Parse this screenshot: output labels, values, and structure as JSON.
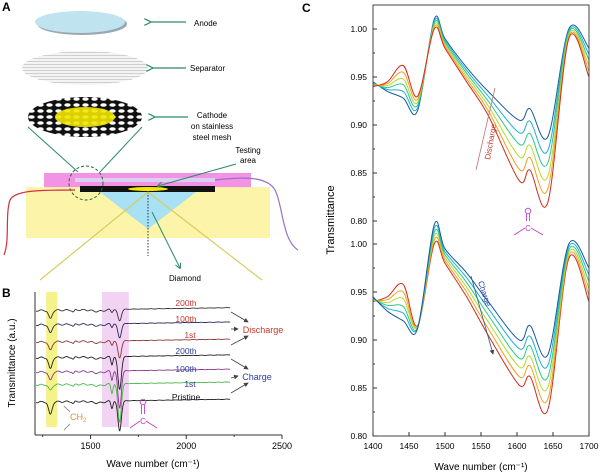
{
  "panels": {
    "a": {
      "letter": "A",
      "anode": "Anode",
      "separator": "Separator",
      "cathode": [
        "Cathode",
        "on stainless",
        "steel mesh"
      ],
      "testing_area": [
        "Testing",
        "area"
      ],
      "diamond": "Diamond"
    },
    "b": {
      "letter": "B",
      "discharge_label": "Discharge",
      "charge_label": "Charge",
      "ch2_label": "CH",
      "ch2_sub": "2",
      "carbonyl_o": "O",
      "carbonyl_c": "C",
      "colors": {
        "discharge": "#c0392b",
        "charge": "#2c3e9a",
        "ch2": "#e0903a",
        "carbonyl": "#c040c8",
        "band_ch2": "#f6f28a",
        "band_co": "#f0c8f0"
      }
    },
    "c": {
      "letter": "C",
      "discharge_label": "Discharge",
      "charge_label": "Charge",
      "carbonyl_o": "O",
      "carbonyl_c": "C"
    }
  },
  "chart_data": [
    {
      "panel": "B",
      "type": "line",
      "xlabel": "Wave number (cm⁻¹)",
      "ylabel": "Transmittance (a.u.)",
      "xlim": [
        1210,
        2500
      ],
      "xticks": [
        1500,
        2000,
        2500
      ],
      "ylim": [
        0,
        10
      ],
      "grid": false,
      "bands_cm-1": {
        "CH2": [
          1268,
          1325
        ],
        "C=O": [
          1560,
          1700
        ]
      },
      "series": [
        {
          "name": "200th",
          "group": "Discharge",
          "label_color": "#c0392b",
          "line_color": "#333333",
          "offset": 8.7,
          "dip_1290": 0.6,
          "dip_1650": 0.8
        },
        {
          "name": "100th",
          "group": "Discharge",
          "label_color": "#c0392b",
          "line_color": "#2a2a5a",
          "offset": 7.7,
          "dip_1290": 0.6,
          "dip_1650": 1.0
        },
        {
          "name": "1st",
          "group": "Discharge",
          "label_color": "#c0392b",
          "line_color": "#8a3a3a",
          "offset": 6.5,
          "dip_1290": 0.6,
          "dip_1650": 1.2
        },
        {
          "name": "200th",
          "group": "Charge",
          "label_color": "#2c3e9a",
          "line_color": "#222222",
          "offset": 5.4,
          "dip_1290": 0.8,
          "dip_1650": 2.3
        },
        {
          "name": "100th",
          "group": "Charge",
          "label_color": "#2c3e9a",
          "line_color": "#8a3a8a",
          "offset": 4.4,
          "dip_1290": 0.6,
          "dip_1650": 2.6
        },
        {
          "name": "1st",
          "group": "Charge",
          "label_color": "#2c3e9a",
          "line_color": "#4ab84a",
          "offset": 3.5,
          "dip_1290": 0.4,
          "dip_1650": 2.7
        },
        {
          "name": "Pristine",
          "group": "",
          "label_color": "#111111",
          "line_color": "#222222",
          "offset": 2.3,
          "dip_1290": 0.9,
          "dip_1650": 2.1
        }
      ]
    },
    {
      "panel": "C-top",
      "type": "line",
      "ylabel": "Transmittance",
      "xlim": [
        1400,
        1700
      ],
      "ylim": [
        0.8,
        1.02
      ],
      "yticks": [
        "0.80",
        "0.85",
        "0.90",
        "0.95",
        "1.00"
      ],
      "x": [
        1400,
        1420,
        1442,
        1462,
        1485,
        1500,
        1530,
        1560,
        1603,
        1618,
        1643,
        1672,
        1700
      ],
      "series": [
        {
          "color": "#1a5a9a",
          "values": [
            0.945,
            0.935,
            0.928,
            0.915,
            1.01,
            0.99,
            0.96,
            0.935,
            0.905,
            0.917,
            0.888,
            1.0,
            0.98
          ]
        },
        {
          "color": "#1bb0d8",
          "values": [
            0.944,
            0.937,
            0.935,
            0.918,
            1.008,
            0.988,
            0.957,
            0.93,
            0.892,
            0.904,
            0.874,
            0.998,
            0.974
          ]
        },
        {
          "color": "#2cc98a",
          "values": [
            0.943,
            0.939,
            0.942,
            0.921,
            1.006,
            0.986,
            0.954,
            0.925,
            0.88,
            0.891,
            0.861,
            0.996,
            0.968
          ]
        },
        {
          "color": "#b8d82a",
          "values": [
            0.942,
            0.941,
            0.948,
            0.924,
            1.004,
            0.984,
            0.951,
            0.92,
            0.867,
            0.879,
            0.847,
            0.994,
            0.962
          ]
        },
        {
          "color": "#f0a020",
          "values": [
            0.941,
            0.943,
            0.955,
            0.927,
            1.002,
            0.982,
            0.948,
            0.915,
            0.854,
            0.866,
            0.834,
            0.992,
            0.956
          ]
        },
        {
          "color": "#d62a1a",
          "values": [
            0.94,
            0.945,
            0.962,
            0.93,
            1.0,
            0.98,
            0.945,
            0.91,
            0.842,
            0.853,
            0.82,
            0.99,
            0.95
          ]
        }
      ]
    },
    {
      "panel": "C-bottom",
      "type": "line",
      "xlabel": "Wave number (cm⁻¹)",
      "xlim": [
        1400,
        1700
      ],
      "xticks": [
        "1400",
        "1450",
        "1500",
        "1550",
        "1600",
        "1650",
        "1700"
      ],
      "ylim": [
        0.8,
        1.02
      ],
      "yticks": [
        "0.80",
        "0.85",
        "0.90",
        "0.95",
        "1.00"
      ],
      "x": [
        1400,
        1420,
        1442,
        1462,
        1485,
        1500,
        1530,
        1560,
        1603,
        1618,
        1643,
        1672,
        1700
      ],
      "series": [
        {
          "color": "#d62a1a",
          "values": [
            0.94,
            0.945,
            0.958,
            0.915,
            1.0,
            0.98,
            0.945,
            0.905,
            0.853,
            0.862,
            0.828,
            0.985,
            0.94
          ]
        },
        {
          "color": "#f0a020",
          "values": [
            0.941,
            0.942,
            0.95,
            0.914,
            1.004,
            0.983,
            0.95,
            0.912,
            0.862,
            0.873,
            0.839,
            0.988,
            0.947
          ]
        },
        {
          "color": "#b8d82a",
          "values": [
            0.942,
            0.939,
            0.943,
            0.914,
            1.008,
            0.986,
            0.955,
            0.919,
            0.872,
            0.883,
            0.851,
            0.991,
            0.954
          ]
        },
        {
          "color": "#2cc98a",
          "values": [
            0.943,
            0.936,
            0.935,
            0.913,
            1.012,
            0.989,
            0.96,
            0.926,
            0.881,
            0.894,
            0.862,
            0.994,
            0.961
          ]
        },
        {
          "color": "#1bb0d8",
          "values": [
            0.944,
            0.933,
            0.928,
            0.913,
            1.016,
            0.992,
            0.965,
            0.933,
            0.891,
            0.904,
            0.874,
            0.997,
            0.968
          ]
        },
        {
          "color": "#1a5a9a",
          "values": [
            0.945,
            0.93,
            0.92,
            0.912,
            1.02,
            0.995,
            0.97,
            0.94,
            0.9,
            0.915,
            0.885,
            1.0,
            0.975
          ]
        }
      ]
    }
  ]
}
